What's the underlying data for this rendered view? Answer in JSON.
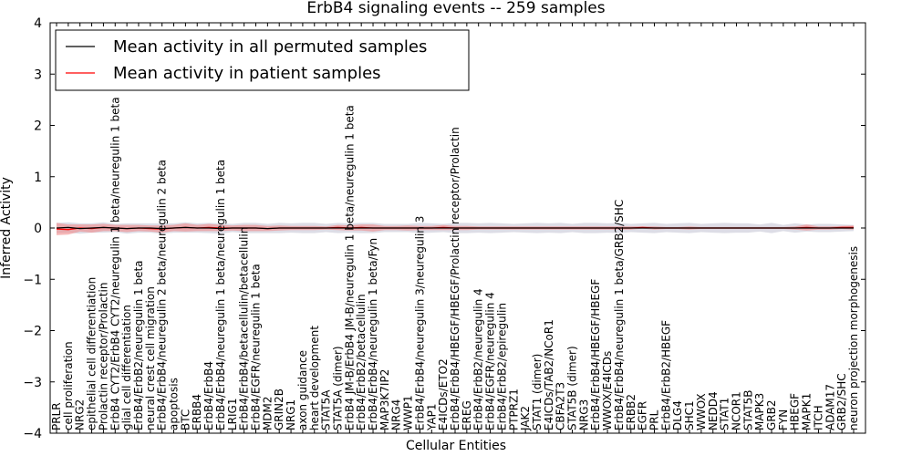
{
  "chart_data": {
    "type": "line",
    "title": "ErbB4 signaling events -- 259 samples",
    "xlabel": "Cellular Entities",
    "ylabel": "Inferred Activity",
    "ylim": [
      -4,
      4
    ],
    "yticks": [
      -4,
      -3,
      -2,
      -1,
      0,
      1,
      2,
      3,
      4
    ],
    "ytick_labels": [
      "−4",
      "−3",
      "−2",
      "−1",
      "0",
      "1",
      "2",
      "3",
      "4"
    ],
    "legend_position": "top-left",
    "categories": [
      "PRLR",
      "cell proliferation",
      "NRG2",
      "epithelial cell differentiation",
      "Prolactin receptor/Prolactin",
      "ErbB4 CYT2/ErbB4 CYT2/neuregulin 1 beta/neuregulin 1 beta",
      "glial cell differentiation",
      "ErbB4/ErbB2/neuregulin 1 beta",
      "neural crest cell migration",
      "ErbB4/ErbB4/neuregulin 2 beta/neuregulin 2 beta",
      "apoptosis",
      "BTC",
      "ERBB4",
      "ErbB4/ErbB4",
      "ErbB4/ErbB4/neuregulin 1 beta/neuregulin 1 beta",
      "LRIG1",
      "ErbB4/ErbB4/betacellulin/betacellulin",
      "ErbB4/EGFR/neuregulin 1 beta",
      "MDM2",
      "GRIN2B",
      "NRG1",
      "axon guidance",
      "heart development",
      "STAT5A",
      "STAT5A (dimer)",
      "ErbB4 JM-B/ErbB4 JM-B/neuregulin 1 beta/neuregulin 1 beta",
      "ErbB4/ErbB2/betacellulin",
      "ErbB4/ErbB4/neuregulin 1 beta/Fyn",
      "MAP3K7IP2",
      "NRG4",
      "WWP1",
      "ErbB4/ErbB4/neuregulin 3/neuregulin 3",
      "YAP1",
      "E4ICDs/ETO2",
      "ErbB4/ErbB4/HBEGF/HBEGF/Prolactin receptor/Prolactin",
      "EREG",
      "ErbB4/ErbB2/neuregulin 4",
      "ErbB4/EGFR/neuregulin 4",
      "ErbB4/ErbB2/epiregulin",
      "PTPRZ1",
      "JAK2",
      "STAT1 (dimer)",
      "E4ICDs/TAB2/NCoR1",
      "CBFA2T3",
      "STAT5B (dimer)",
      "NRG3",
      "ErbB4/ErbB4/HBEGF/HBEGF",
      "WWOX/E4ICDs",
      "ErbB4/ErbB4/neuregulin 1 beta/GRB2/SHC",
      "ERBB2",
      "EGFR",
      "PRL",
      "ErbB4/ErbB2/HBEGF",
      "DLG4",
      "SHC1",
      "WWOX",
      "NEDD4",
      "STAT1",
      "NCOR1",
      "STAT5B",
      "MAPK3",
      "GRB2",
      "FYN",
      "HBEGF",
      "MAPK1",
      "ITCH",
      "ADAM17",
      "GRB2/SHC",
      "neuron projection morphogenesis"
    ],
    "series": [
      {
        "name": "Mean activity in all permuted samples",
        "color": "#000000",
        "band_color": "#b4b4c8",
        "values": [
          0.0,
          0.01,
          -0.01,
          0.0,
          0.01,
          0.0,
          -0.01,
          0.0,
          0.0,
          -0.01,
          0.0,
          0.01,
          0.0,
          0.0,
          -0.01,
          0.0,
          0.0,
          0.0,
          -0.01,
          0.0,
          0.0,
          0.0,
          0.0,
          0.0,
          0.0,
          0.0,
          0.0,
          0.0,
          0.0,
          0.0,
          0.0,
          0.0,
          0.0,
          0.0,
          0.0,
          0.0,
          0.0,
          0.0,
          0.0,
          0.0,
          0.0,
          0.0,
          0.0,
          0.0,
          0.0,
          0.0,
          0.0,
          0.0,
          0.0,
          0.0,
          0.0,
          0.0,
          0.0,
          0.0,
          0.0,
          0.0,
          0.0,
          0.0,
          0.0,
          0.0,
          0.0,
          0.0,
          0.0,
          0.0,
          0.0,
          0.0,
          0.0,
          0.0,
          0.0
        ],
        "std": [
          0.1,
          0.1,
          0.1,
          0.09,
          0.1,
          0.08,
          0.1,
          0.09,
          0.09,
          0.1,
          0.09,
          0.1,
          0.09,
          0.1,
          0.1,
          0.08,
          0.1,
          0.1,
          0.09,
          0.1,
          0.09,
          0.1,
          0.1,
          0.08,
          0.1,
          0.09,
          0.1,
          0.1,
          0.08,
          0.08,
          0.08,
          0.1,
          0.09,
          0.08,
          0.1,
          0.1,
          0.09,
          0.1,
          0.09,
          0.08,
          0.09,
          0.1,
          0.09,
          0.1,
          0.08,
          0.1,
          0.1,
          0.09,
          0.1,
          0.08,
          0.09,
          0.1,
          0.08,
          0.09,
          0.1,
          0.08,
          0.09,
          0.1,
          0.09,
          0.09,
          0.07,
          0.1,
          0.06,
          0.09,
          0.07,
          0.08,
          0.08,
          0.07,
          0.06
        ]
      },
      {
        "name": "Mean activity in patient samples",
        "color": "#ff0000",
        "band_color": "#f08080",
        "values": [
          -0.02,
          -0.03,
          0.0,
          -0.01,
          0.01,
          0.0,
          -0.01,
          0.0,
          -0.01,
          -0.02,
          0.0,
          0.01,
          0.0,
          0.01,
          0.0,
          0.0,
          0.0,
          0.0,
          -0.01,
          0.0,
          0.0,
          0.0,
          0.0,
          0.0,
          0.01,
          0.0,
          0.01,
          0.0,
          0.0,
          0.0,
          0.0,
          0.0,
          0.0,
          0.01,
          0.0,
          0.0,
          0.0,
          0.0,
          0.0,
          0.0,
          0.0,
          0.0,
          0.0,
          0.0,
          0.0,
          0.0,
          0.0,
          0.0,
          0.0,
          0.0,
          0.01,
          0.0,
          0.0,
          0.0,
          0.0,
          0.0,
          0.0,
          0.0,
          0.0,
          0.0,
          0.0,
          0.0,
          0.0,
          0.0,
          0.01,
          0.0,
          0.0,
          0.01,
          0.01
        ],
        "std": [
          0.12,
          0.1,
          0.07,
          0.08,
          0.07,
          0.06,
          0.07,
          0.06,
          0.06,
          0.07,
          0.06,
          0.08,
          0.06,
          0.07,
          0.06,
          0.05,
          0.06,
          0.06,
          0.05,
          0.05,
          0.04,
          0.04,
          0.04,
          0.03,
          0.05,
          0.05,
          0.06,
          0.07,
          0.04,
          0.04,
          0.05,
          0.04,
          0.04,
          0.05,
          0.04,
          0.04,
          0.03,
          0.03,
          0.03,
          0.03,
          0.03,
          0.03,
          0.03,
          0.03,
          0.03,
          0.03,
          0.03,
          0.03,
          0.03,
          0.03,
          0.02,
          0.03,
          0.02,
          0.02,
          0.03,
          0.02,
          0.02,
          0.02,
          0.02,
          0.02,
          0.02,
          0.02,
          0.02,
          0.03,
          0.06,
          0.03,
          0.03,
          0.03,
          0.04
        ]
      }
    ]
  }
}
